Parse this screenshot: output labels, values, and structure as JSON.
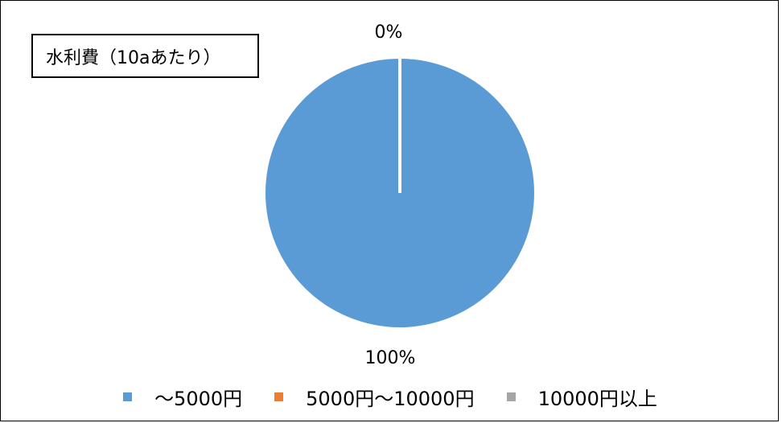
{
  "chart_data": {
    "type": "pie",
    "title": "水利費（10aあたり）",
    "categories": [
      "～5000円",
      "5000円～10000円",
      "10000円以上"
    ],
    "values": [
      100,
      0,
      0
    ],
    "data_labels": [
      "100%",
      "0%",
      "0%"
    ],
    "colors": [
      "#5b9bd5",
      "#ed7d31",
      "#a5a5a5"
    ],
    "legend_position": "bottom"
  }
}
